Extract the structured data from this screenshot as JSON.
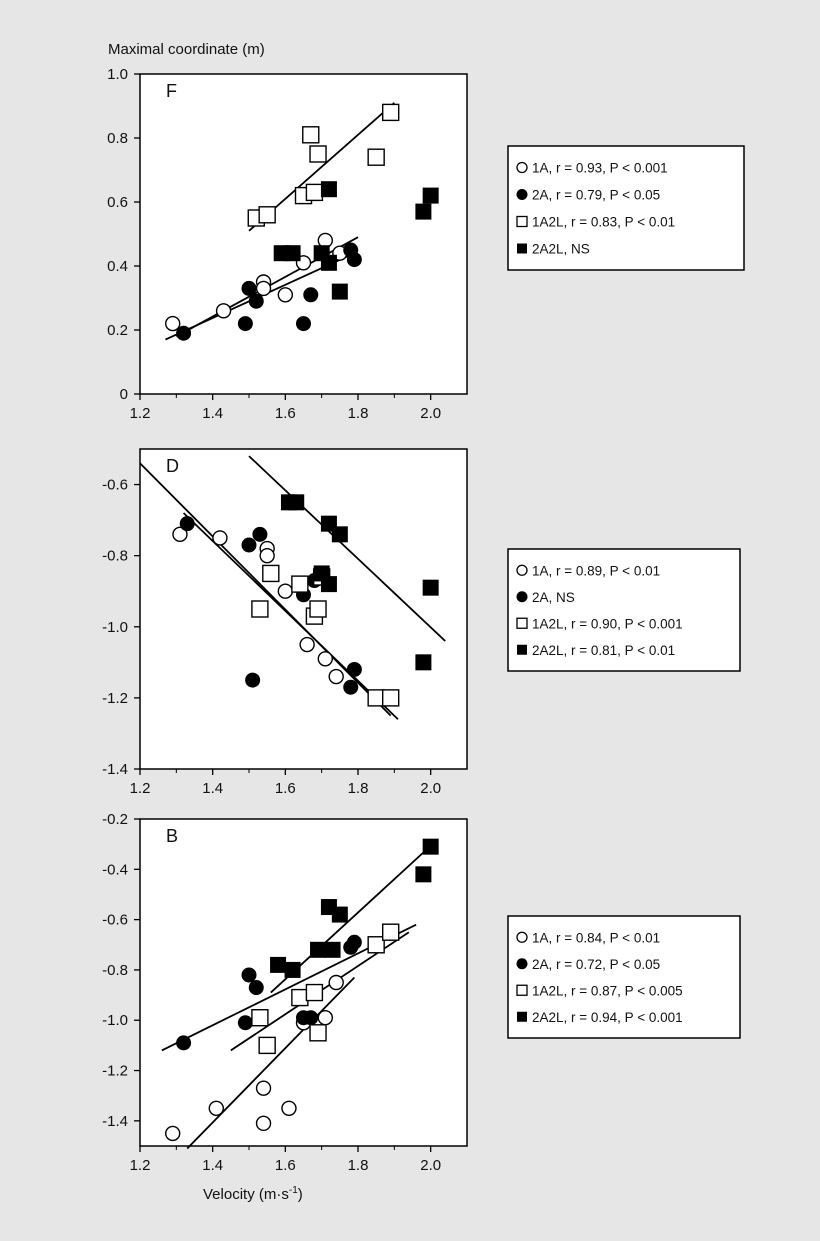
{
  "ylabel": "Maximal coordinate (m)",
  "xlabel_main": "Velocity (m",
  "xlabel_unit": "·s",
  "xlabel_exp": "-1",
  "xlabel_close": ")",
  "chart_data": [
    {
      "type": "scatter",
      "panel_label": "F",
      "xlim": [
        1.2,
        2.1
      ],
      "ylim": [
        0,
        1.0
      ],
      "x_ticks": [
        "1.2",
        "1.4",
        "1.6",
        "1.8",
        "2.0"
      ],
      "y_ticks": [
        "0",
        "0.2",
        "0.4",
        "0.6",
        "0.8",
        "1.0"
      ],
      "legend": [
        {
          "marker": "open-circle",
          "name": "1A",
          "stat": "r = 0.93, P < 0.001"
        },
        {
          "marker": "filled-circle",
          "name": "2A",
          "stat": "r = 0.79, P < 0.05"
        },
        {
          "marker": "open-square",
          "name": "1A2L",
          "stat": "r = 0.83, P < 0.01"
        },
        {
          "marker": "filled-square",
          "name": "2A2L",
          "stat": "NS"
        }
      ],
      "series": [
        {
          "marker": "open-circle",
          "points": [
            [
              1.29,
              0.22
            ],
            [
              1.43,
              0.26
            ],
            [
              1.54,
              0.35
            ],
            [
              1.54,
              0.33
            ],
            [
              1.6,
              0.31
            ],
            [
              1.65,
              0.41
            ],
            [
              1.71,
              0.48
            ],
            [
              1.75,
              0.44
            ]
          ]
        },
        {
          "marker": "filled-circle",
          "points": [
            [
              1.32,
              0.19
            ],
            [
              1.49,
              0.22
            ],
            [
              1.5,
              0.33
            ],
            [
              1.52,
              0.29
            ],
            [
              1.65,
              0.22
            ],
            [
              1.67,
              0.31
            ],
            [
              1.78,
              0.45
            ],
            [
              1.79,
              0.42
            ]
          ]
        },
        {
          "marker": "open-square",
          "points": [
            [
              1.52,
              0.55
            ],
            [
              1.55,
              0.56
            ],
            [
              1.65,
              0.62
            ],
            [
              1.67,
              0.81
            ],
            [
              1.69,
              0.75
            ],
            [
              1.85,
              0.74
            ],
            [
              1.89,
              0.88
            ],
            [
              1.68,
              0.63
            ]
          ]
        },
        {
          "marker": "filled-square",
          "points": [
            [
              1.59,
              0.44
            ],
            [
              1.62,
              0.44
            ],
            [
              1.7,
              0.44
            ],
            [
              1.72,
              0.41
            ],
            [
              1.72,
              0.64
            ],
            [
              1.75,
              0.32
            ],
            [
              1.98,
              0.57
            ],
            [
              2.0,
              0.62
            ]
          ]
        }
      ],
      "fit_lines": [
        [
          [
            1.27,
            0.17
          ],
          [
            1.79,
            0.44
          ]
        ],
        [
          [
            1.3,
            0.18
          ],
          [
            1.8,
            0.49
          ]
        ],
        [
          [
            1.5,
            0.51
          ],
          [
            1.9,
            0.91
          ]
        ]
      ]
    },
    {
      "type": "scatter",
      "panel_label": "D",
      "xlim": [
        1.2,
        2.1
      ],
      "ylim": [
        -1.4,
        -0.5
      ],
      "x_ticks": [
        "1.2",
        "1.4",
        "1.6",
        "1.8",
        "2.0"
      ],
      "y_ticks": [
        "-0.6",
        "-0.8",
        "-1.0",
        "-1.2",
        "-1.4"
      ],
      "legend": [
        {
          "marker": "open-circle",
          "name": "1A",
          "stat": "r = 0.89, P < 0.01"
        },
        {
          "marker": "filled-circle",
          "name": "2A",
          "stat": "NS"
        },
        {
          "marker": "open-square",
          "name": "1A2L",
          "stat": "r = 0.90, P < 0.001"
        },
        {
          "marker": "filled-square",
          "name": "2A2L",
          "stat": "r = 0.81, P < 0.01"
        }
      ],
      "series": [
        {
          "marker": "open-circle",
          "points": [
            [
              1.31,
              -0.74
            ],
            [
              1.42,
              -0.75
            ],
            [
              1.55,
              -0.78
            ],
            [
              1.55,
              -0.8
            ],
            [
              1.6,
              -0.9
            ],
            [
              1.66,
              -1.05
            ],
            [
              1.71,
              -1.09
            ],
            [
              1.74,
              -1.14
            ]
          ]
        },
        {
          "marker": "filled-circle",
          "points": [
            [
              1.33,
              -0.71
            ],
            [
              1.5,
              -0.77
            ],
            [
              1.51,
              -1.15
            ],
            [
              1.53,
              -0.74
            ],
            [
              1.65,
              -0.91
            ],
            [
              1.68,
              -0.87
            ],
            [
              1.78,
              -1.17
            ],
            [
              1.79,
              -1.12
            ]
          ]
        },
        {
          "marker": "open-square",
          "points": [
            [
              1.53,
              -0.95
            ],
            [
              1.56,
              -0.85
            ],
            [
              1.64,
              -0.88
            ],
            [
              1.68,
              -0.97
            ],
            [
              1.69,
              -0.95
            ],
            [
              1.7,
              -0.86
            ],
            [
              1.85,
              -1.2
            ],
            [
              1.89,
              -1.2
            ]
          ]
        },
        {
          "marker": "filled-square",
          "points": [
            [
              1.61,
              -0.65
            ],
            [
              1.63,
              -0.65
            ],
            [
              1.7,
              -0.85
            ],
            [
              1.72,
              -0.71
            ],
            [
              1.72,
              -0.88
            ],
            [
              1.75,
              -0.74
            ],
            [
              1.98,
              -1.1
            ],
            [
              2.0,
              -0.89
            ]
          ]
        }
      ],
      "fit_lines": [
        [
          [
            1.2,
            -0.54
          ],
          [
            1.89,
            -1.25
          ]
        ],
        [
          [
            1.32,
            -0.68
          ],
          [
            1.91,
            -1.26
          ]
        ],
        [
          [
            1.5,
            -0.52
          ],
          [
            2.04,
            -1.04
          ]
        ]
      ]
    },
    {
      "type": "scatter",
      "panel_label": "B",
      "xlim": [
        1.2,
        2.1
      ],
      "ylim": [
        -1.5,
        -0.2
      ],
      "x_ticks": [
        "1.2",
        "1.4",
        "1.6",
        "1.8",
        "2.0"
      ],
      "y_ticks": [
        "-0.2",
        "-0.4",
        "-0.6",
        "-0.8",
        "-1.0",
        "-1.2",
        "-1.4"
      ],
      "legend": [
        {
          "marker": "open-circle",
          "name": "1A",
          "stat": "r = 0.84, P < 0.01"
        },
        {
          "marker": "filled-circle",
          "name": "2A",
          "stat": "r = 0.72, P < 0.05"
        },
        {
          "marker": "open-square",
          "name": "1A2L",
          "stat": "r = 0.87, P < 0.005"
        },
        {
          "marker": "filled-square",
          "name": "2A2L",
          "stat": "r = 0.94, P < 0.001"
        }
      ],
      "series": [
        {
          "marker": "open-circle",
          "points": [
            [
              1.29,
              -1.45
            ],
            [
              1.41,
              -1.35
            ],
            [
              1.54,
              -1.27
            ],
            [
              1.54,
              -1.41
            ],
            [
              1.61,
              -1.35
            ],
            [
              1.65,
              -1.01
            ],
            [
              1.71,
              -0.99
            ],
            [
              1.74,
              -0.85
            ]
          ]
        },
        {
          "marker": "filled-circle",
          "points": [
            [
              1.32,
              -1.09
            ],
            [
              1.49,
              -1.01
            ],
            [
              1.5,
              -0.82
            ],
            [
              1.52,
              -0.87
            ],
            [
              1.65,
              -0.99
            ],
            [
              1.67,
              -0.99
            ],
            [
              1.78,
              -0.71
            ],
            [
              1.79,
              -0.69
            ]
          ]
        },
        {
          "marker": "open-square",
          "points": [
            [
              1.53,
              -0.99
            ],
            [
              1.55,
              -1.1
            ],
            [
              1.64,
              -0.91
            ],
            [
              1.68,
              -0.89
            ],
            [
              1.69,
              -1.05
            ],
            [
              1.85,
              -0.7
            ],
            [
              1.89,
              -0.65
            ]
          ]
        },
        {
          "marker": "filled-square",
          "points": [
            [
              1.58,
              -0.78
            ],
            [
              1.62,
              -0.8
            ],
            [
              1.69,
              -0.72
            ],
            [
              1.72,
              -0.55
            ],
            [
              1.73,
              -0.72
            ],
            [
              1.75,
              -0.58
            ],
            [
              1.98,
              -0.42
            ],
            [
              2.0,
              -0.31
            ]
          ]
        }
      ],
      "fit_lines": [
        [
          [
            1.26,
            -1.12
          ],
          [
            1.96,
            -0.62
          ]
        ],
        [
          [
            1.33,
            -1.51
          ],
          [
            1.79,
            -0.83
          ]
        ],
        [
          [
            1.45,
            -1.12
          ],
          [
            1.94,
            -0.65
          ]
        ],
        [
          [
            1.56,
            -0.89
          ],
          [
            2.02,
            -0.28
          ]
        ]
      ]
    }
  ]
}
